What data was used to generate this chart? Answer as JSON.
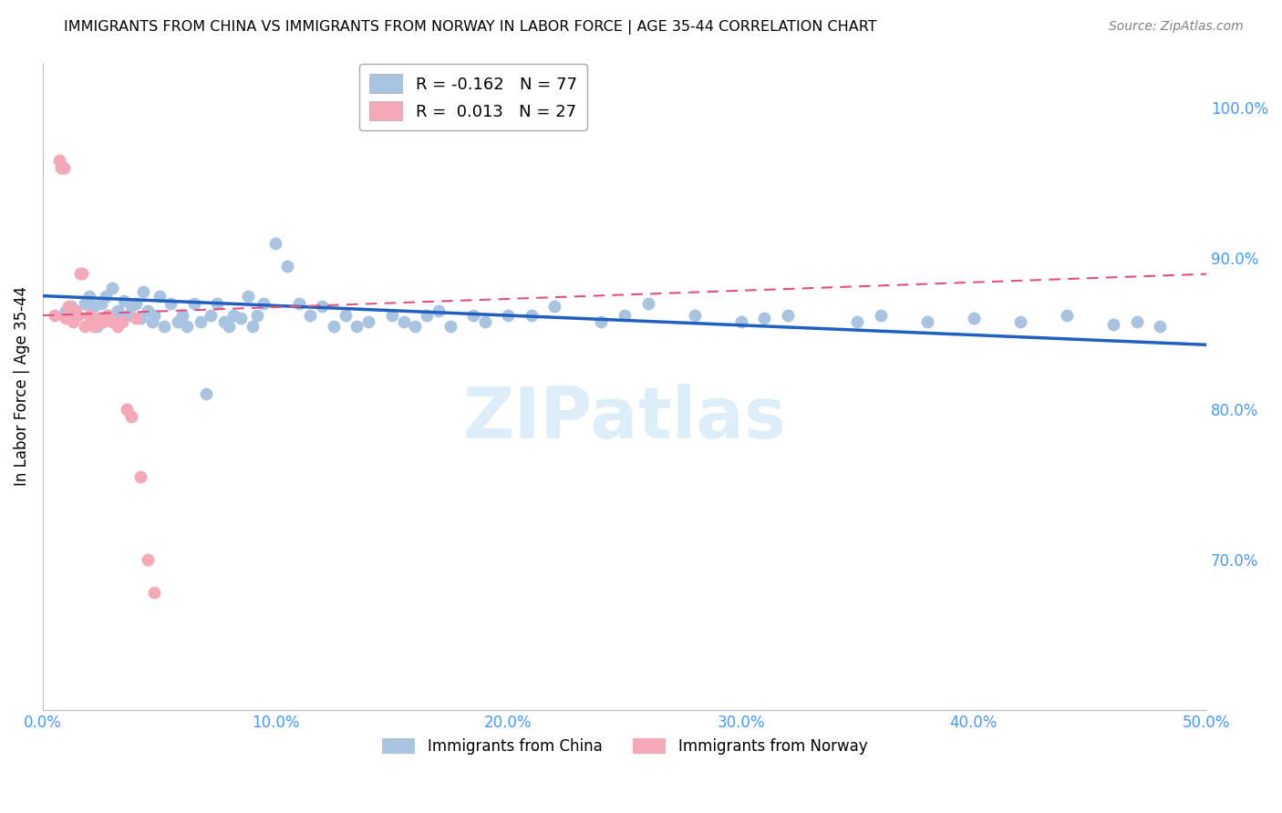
{
  "title": "IMMIGRANTS FROM CHINA VS IMMIGRANTS FROM NORWAY IN LABOR FORCE | AGE 35-44 CORRELATION CHART",
  "source": "Source: ZipAtlas.com",
  "ylabel": "In Labor Force | Age 35-44",
  "xlim": [
    0.0,
    0.5
  ],
  "ylim": [
    0.6,
    1.03
  ],
  "xtick_vals": [
    0.0,
    0.1,
    0.2,
    0.3,
    0.4,
    0.5
  ],
  "xtick_labels": [
    "0.0%",
    "10.0%",
    "20.0%",
    "30.0%",
    "40.0%",
    "50.0%"
  ],
  "yticks_right": [
    0.7,
    0.8,
    0.9,
    1.0
  ],
  "ytick_labels_right": [
    "70.0%",
    "80.0%",
    "90.0%",
    "100.0%"
  ],
  "china_color": "#a8c4e0",
  "norway_color": "#f4a8b8",
  "china_line_color": "#2060c0",
  "norway_line_color": "#e05080",
  "legend_china_R": "-0.162",
  "legend_china_N": "77",
  "legend_norway_R": "0.013",
  "legend_norway_N": "27",
  "watermark": "ZIPatlas",
  "china_x": [
    0.01,
    0.012,
    0.015,
    0.018,
    0.02,
    0.022,
    0.023,
    0.025,
    0.027,
    0.028,
    0.03,
    0.032,
    0.033,
    0.035,
    0.037,
    0.038,
    0.04,
    0.042,
    0.043,
    0.045,
    0.047,
    0.048,
    0.05,
    0.052,
    0.055,
    0.058,
    0.06,
    0.062,
    0.065,
    0.068,
    0.07,
    0.072,
    0.075,
    0.078,
    0.08,
    0.082,
    0.085,
    0.088,
    0.09,
    0.092,
    0.095,
    0.1,
    0.105,
    0.11,
    0.115,
    0.12,
    0.125,
    0.13,
    0.135,
    0.14,
    0.15,
    0.155,
    0.16,
    0.165,
    0.17,
    0.175,
    0.185,
    0.19,
    0.2,
    0.21,
    0.22,
    0.24,
    0.25,
    0.26,
    0.28,
    0.3,
    0.31,
    0.32,
    0.35,
    0.36,
    0.38,
    0.4,
    0.42,
    0.44,
    0.46,
    0.47,
    0.48
  ],
  "china_y": [
    0.865,
    0.868,
    0.862,
    0.87,
    0.875,
    0.868,
    0.855,
    0.87,
    0.875,
    0.862,
    0.88,
    0.865,
    0.858,
    0.872,
    0.862,
    0.868,
    0.87,
    0.86,
    0.878,
    0.865,
    0.858,
    0.862,
    0.875,
    0.855,
    0.87,
    0.858,
    0.862,
    0.855,
    0.87,
    0.858,
    0.81,
    0.862,
    0.87,
    0.858,
    0.855,
    0.862,
    0.86,
    0.875,
    0.855,
    0.862,
    0.87,
    0.91,
    0.895,
    0.87,
    0.862,
    0.868,
    0.855,
    0.862,
    0.855,
    0.858,
    0.862,
    0.858,
    0.855,
    0.862,
    0.865,
    0.855,
    0.862,
    0.858,
    0.862,
    0.862,
    0.868,
    0.858,
    0.862,
    0.87,
    0.862,
    0.858,
    0.86,
    0.862,
    0.858,
    0.862,
    0.858,
    0.86,
    0.858,
    0.862,
    0.856,
    0.858,
    0.855
  ],
  "norway_x": [
    0.005,
    0.007,
    0.008,
    0.009,
    0.01,
    0.011,
    0.012,
    0.013,
    0.014,
    0.015,
    0.016,
    0.017,
    0.018,
    0.02,
    0.022,
    0.024,
    0.026,
    0.028,
    0.03,
    0.032,
    0.034,
    0.036,
    0.038,
    0.04,
    0.042,
    0.045,
    0.048
  ],
  "norway_y": [
    0.862,
    0.965,
    0.96,
    0.96,
    0.86,
    0.868,
    0.862,
    0.858,
    0.865,
    0.862,
    0.89,
    0.89,
    0.855,
    0.862,
    0.855,
    0.86,
    0.858,
    0.862,
    0.858,
    0.855,
    0.858,
    0.8,
    0.795,
    0.86,
    0.755,
    0.7,
    0.678
  ]
}
